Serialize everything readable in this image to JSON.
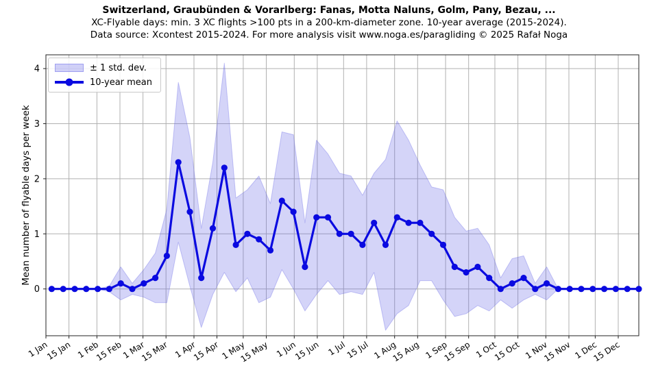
{
  "chart_data": {
    "type": "line",
    "title": "Switzerland, Graubünden & Vorarlberg: Fanas, Motta Naluns, Golm, Pany, Bezau, ...",
    "subtitle": "XC-Flyable days: min. 3 XC flights >100 pts in a 200-km-diameter zone. 10-year average (2015-2024).",
    "source_note": "Data source: Xcontest 2015-2024. For more analysis visit www.noga.es/paragliding © 2025 Rafał Noga",
    "xlabel": "",
    "ylabel": "Mean number of flyable days per week",
    "grid": true,
    "legend": {
      "band_label": "± 1 std. dev.",
      "mean_label": "10-year mean",
      "position": "upper-left"
    },
    "x_tick_labels": [
      "1 Jan",
      "15 Jan",
      "1 Feb",
      "15 Feb",
      "1 Mar",
      "15 Mar",
      "1 Apr",
      "15 Apr",
      "1 May",
      "15 May",
      "1 Jun",
      "15 Jun",
      "1 Jul",
      "15 Jul",
      "1 Aug",
      "15 Aug",
      "1 Sep",
      "15 Sep",
      "1 Oct",
      "15 Oct",
      "1 Nov",
      "15 Nov",
      "1 Dec",
      "15 Dec"
    ],
    "x_tick_days": [
      0,
      14,
      31,
      45,
      59,
      73,
      90,
      104,
      120,
      134,
      151,
      165,
      181,
      195,
      212,
      226,
      243,
      257,
      273,
      287,
      304,
      318,
      334,
      348
    ],
    "y_ticks": [
      0,
      1,
      2,
      3,
      4
    ],
    "xlim_days": [
      0,
      360.5
    ],
    "ylim": [
      -0.85,
      4.25
    ],
    "weeks_x_days": [
      3.5,
      10.5,
      17.5,
      24.5,
      31.5,
      38.5,
      45.5,
      52.5,
      59.5,
      66.5,
      73.5,
      80.5,
      87.5,
      94.5,
      101.5,
      108.5,
      115.5,
      122.5,
      129.5,
      136.5,
      143.5,
      150.5,
      157.5,
      164.5,
      171.5,
      178.5,
      185.5,
      192.5,
      199.5,
      206.5,
      213.5,
      220.5,
      227.5,
      234.5,
      241.5,
      248.5,
      255.5,
      262.5,
      269.5,
      276.5,
      283.5,
      290.5,
      297.5,
      304.5,
      311.5,
      318.5,
      325.5,
      332.5,
      339.5,
      346.5,
      353.5,
      360.5
    ],
    "series": [
      {
        "name": "10-year mean",
        "style": "line-with-markers",
        "values": [
          0,
          0,
          0,
          0,
          0,
          0,
          0.1,
          0,
          0.1,
          0.2,
          0.6,
          2.3,
          1.4,
          0.2,
          1.1,
          2.2,
          0.8,
          1.0,
          0.9,
          0.7,
          1.6,
          1.4,
          0.4,
          1.3,
          1.3,
          1.0,
          1.0,
          0.8,
          1.2,
          0.8,
          1.3,
          1.2,
          1.2,
          1.0,
          0.8,
          0.4,
          0.3,
          0.4,
          0.2,
          0,
          0.1,
          0.2,
          0,
          0.1,
          0,
          0,
          0,
          0,
          0,
          0,
          0,
          0
        ]
      },
      {
        "name": "± 1 std. dev.",
        "style": "band",
        "std": [
          0,
          0,
          0,
          0,
          0,
          0.05,
          0.3,
          0.1,
          0.25,
          0.45,
          0.85,
          1.45,
          1.35,
          0.9,
          1.2,
          1.9,
          0.85,
          0.8,
          1.15,
          0.85,
          1.25,
          1.4,
          0.8,
          1.4,
          1.15,
          1.1,
          1.05,
          0.9,
          0.9,
          1.55,
          1.75,
          1.5,
          1.05,
          0.85,
          1.0,
          0.9,
          0.75,
          0.7,
          0.6,
          0.2,
          0.45,
          0.4,
          0.1,
          0.3,
          0,
          0,
          0,
          0,
          0,
          0,
          0,
          0
        ]
      }
    ],
    "colors": {
      "mean_line": "#0a0ae0",
      "band_fill": "#6464e6",
      "grid": "#b0b0b0",
      "spine": "#222222",
      "text": "#000000",
      "background": "#ffffff"
    }
  }
}
